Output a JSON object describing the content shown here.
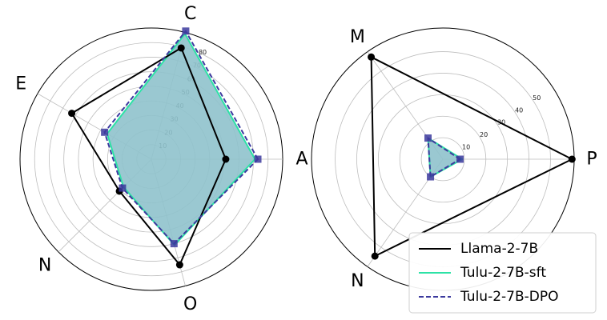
{
  "chart_data": [
    {
      "type": "radar",
      "axes": [
        "A",
        "C",
        "E",
        "N",
        "O"
      ],
      "angles_deg": [
        0,
        75,
        150,
        225,
        285
      ],
      "rlim": [
        0,
        90
      ],
      "rticks": [
        10,
        20,
        30,
        40,
        50,
        60,
        70,
        80
      ],
      "tick_angle_deg": 67,
      "grid": true,
      "series": [
        {
          "name": "Llama-2-7B",
          "values": [
            51,
            79,
            63,
            31,
            75
          ],
          "color": "#000000",
          "dash": "solid",
          "marker": "circle",
          "fill": false
        },
        {
          "name": "Tulu-2-7B-sft",
          "values": [
            71,
            89,
            35,
            27,
            61
          ],
          "color": "#2de2a6",
          "dash": "solid",
          "marker": "none",
          "fill": true
        },
        {
          "name": "Tulu-2-7B-DPO",
          "values": [
            73,
            91,
            37,
            28,
            60
          ],
          "color": "#3c3a9e",
          "dash": "dashed",
          "marker": "square",
          "fill": false
        }
      ]
    },
    {
      "type": "radar",
      "axes": [
        "P",
        "M",
        "N"
      ],
      "angles_deg": [
        0,
        125,
        235
      ],
      "rlim": [
        0,
        61
      ],
      "rticks": [
        10,
        20,
        30,
        40,
        50
      ],
      "tick_angle_deg": 35,
      "grid": true,
      "series": [
        {
          "name": "Llama-2-7B",
          "values": [
            60,
            58,
            55
          ],
          "color": "#000000",
          "dash": "solid",
          "marker": "circle",
          "fill": false
        },
        {
          "name": "Tulu-2-7B-sft",
          "values": [
            9,
            12,
            10
          ],
          "color": "#2de2a6",
          "dash": "solid",
          "marker": "none",
          "fill": true
        },
        {
          "name": "Tulu-2-7B-DPO",
          "values": [
            8,
            12,
            10
          ],
          "color": "#3c3a9e",
          "dash": "dashed",
          "marker": "square",
          "fill": false
        }
      ]
    }
  ],
  "colors": {
    "fill_area": "#8fc2cc",
    "grid": "#bdbdbd"
  },
  "legend": {
    "placement": "bottom-right",
    "entries": [
      "Llama-2-7B",
      "Tulu-2-7B-sft",
      "Tulu-2-7B-DPO"
    ]
  }
}
